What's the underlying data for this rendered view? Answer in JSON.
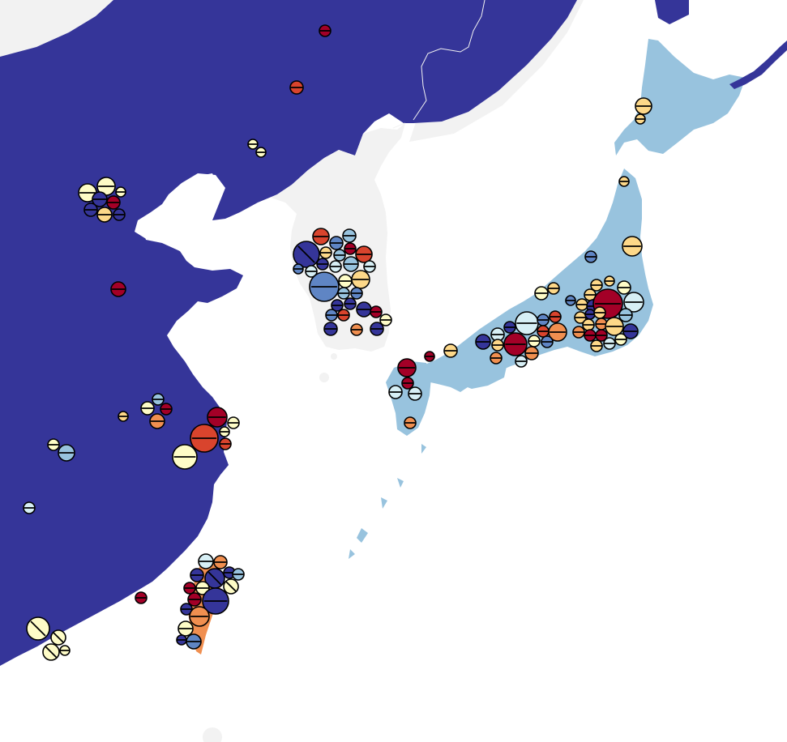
{
  "colors": {
    "sea": "#ffffff",
    "china": "#353599",
    "korea": "#f2f2f2",
    "japan": "#98c3de",
    "taiwan": "#f08f50",
    "border": "#f2f2f2"
  },
  "class_colors": {
    "c1": "#353599",
    "c2": "#5f85c4",
    "c3": "#98c3de",
    "c4": "#d7eff5",
    "c5": "#fefcc7",
    "c6": "#fdd889",
    "c7": "#f08f50",
    "c8": "#d9442d",
    "c9": "#a30027"
  },
  "regions": [
    {
      "name": "china",
      "label": ""
    },
    {
      "name": "korea",
      "label": ""
    },
    {
      "name": "japan",
      "label": ""
    },
    {
      "name": "taiwan",
      "label": ""
    }
  ]
}
